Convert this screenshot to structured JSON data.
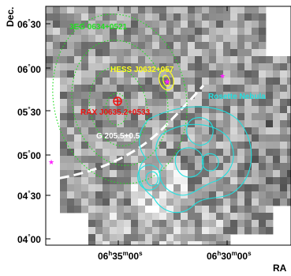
{
  "figure": {
    "y_axis_label": "Dec.",
    "x_axis_label": "RA",
    "y_ticks": [
      {
        "deg": "06",
        "min": "30",
        "sep": "°"
      },
      {
        "deg": "06",
        "min": "00",
        "sep": "°"
      },
      {
        "deg": "05",
        "min": "30",
        "sep": "°"
      },
      {
        "deg": "05",
        "min": "00",
        "sep": "°"
      },
      {
        "deg": "04",
        "min": "30",
        "sep": "°"
      },
      {
        "deg": "04",
        "min": "00",
        "sep": "°"
      }
    ],
    "x_ticks": [
      {
        "h": "06",
        "m": "35",
        "s": "00"
      },
      {
        "h": "06",
        "m": "30",
        "s": "00"
      }
    ],
    "sources": {
      "egret": {
        "label": "3EG 0634+0521",
        "color": "#22dd22"
      },
      "hess": {
        "label": "HESS J0632+057",
        "color": "#ffff22"
      },
      "rosat": {
        "label": "RAX J0635.2+0533",
        "color": "#ee1111"
      },
      "snr": {
        "label": "G 205.5+0.5",
        "color": "#ffffff"
      },
      "rosette": {
        "label": "Rosette Nebula",
        "color": "#22e0e0"
      }
    },
    "marker_color": "#ff22ff"
  }
}
